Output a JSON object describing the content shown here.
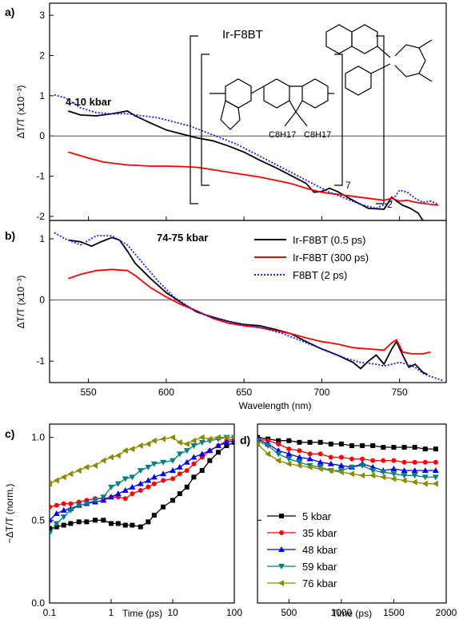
{
  "chart_data": [
    {
      "panel_label": "a)",
      "type": "line",
      "annotation": "4-10 kbar",
      "ylabel": "ΔT/T (x10⁻³)",
      "xlim": [
        525,
        780
      ],
      "ylim": [
        -2.1,
        3.3
      ],
      "yticks": [
        -2,
        -1,
        0,
        1,
        2,
        3
      ],
      "structure": {
        "title": "Ir-F8BT",
        "sub_left": "C8H17",
        "sub_right": "C8H17",
        "repeat_n": "7",
        "repeat_m": "2"
      },
      "series": [
        {
          "key": "ir05",
          "color": "#000000",
          "dash": "solid",
          "x": [
            537,
            545,
            555,
            565,
            575,
            580,
            590,
            600,
            610,
            620,
            630,
            640,
            650,
            660,
            670,
            680,
            690,
            695,
            700,
            705,
            710,
            720,
            730,
            740,
            745,
            748,
            752,
            757,
            762,
            765
          ],
          "y": [
            0.62,
            0.52,
            0.5,
            0.55,
            0.62,
            0.5,
            0.32,
            0.15,
            0.05,
            -0.05,
            -0.12,
            -0.25,
            -0.4,
            -0.6,
            -0.78,
            -0.98,
            -1.18,
            -1.4,
            -1.38,
            -1.3,
            -1.38,
            -1.6,
            -1.8,
            -1.82,
            -1.52,
            -1.62,
            -1.72,
            -1.8,
            -1.92,
            -2.1
          ]
        },
        {
          "key": "ir300",
          "color": "#ff0000",
          "dash": "solid",
          "x": [
            537,
            550,
            560,
            575,
            590,
            600,
            610,
            620,
            630,
            640,
            650,
            660,
            670,
            680,
            690,
            700,
            710,
            720,
            730,
            740,
            745,
            750,
            755,
            760,
            770,
            775
          ],
          "y": [
            -0.4,
            -0.55,
            -0.65,
            -0.72,
            -0.75,
            -0.75,
            -0.76,
            -0.78,
            -0.84,
            -0.9,
            -0.96,
            -1.02,
            -1.1,
            -1.18,
            -1.3,
            -1.4,
            -1.45,
            -1.5,
            -1.55,
            -1.6,
            -1.55,
            -1.62,
            -1.6,
            -1.65,
            -1.7,
            -1.72
          ]
        },
        {
          "key": "f8bt",
          "color": "#1a1aff",
          "dash": "dotted",
          "x": [
            528,
            535,
            545,
            555,
            565,
            575,
            585,
            595,
            605,
            615,
            625,
            635,
            645,
            655,
            665,
            675,
            685,
            695,
            705,
            715,
            725,
            735,
            745,
            750,
            755,
            760,
            765,
            770,
            775
          ],
          "y": [
            1.02,
            0.95,
            0.7,
            0.58,
            0.55,
            0.55,
            0.5,
            0.45,
            0.35,
            0.25,
            0.1,
            -0.05,
            -0.2,
            -0.4,
            -0.6,
            -0.8,
            -1.0,
            -1.2,
            -1.4,
            -1.55,
            -1.7,
            -1.8,
            -1.62,
            -1.35,
            -1.4,
            -1.55,
            -1.65,
            -1.62,
            -1.7
          ]
        }
      ]
    },
    {
      "panel_label": "b)",
      "type": "line",
      "annotation": "74-75 kbar",
      "ylabel": "ΔT/T (x10⁻³)",
      "xlabel": "Wavelength (nm)",
      "xlim": [
        525,
        780
      ],
      "ylim": [
        -1.35,
        1.3
      ],
      "xticks": [
        550,
        600,
        650,
        700,
        750
      ],
      "yticks": [
        -1,
        0,
        1
      ],
      "legend": [
        "Ir-F8BT (0.5 ps)",
        "Ir-F8BT (300 ps)",
        "F8BT (2 ps)"
      ],
      "series": [
        {
          "key": "ir05",
          "color": "#000000",
          "dash": "solid",
          "x": [
            537,
            545,
            552,
            558,
            565,
            570,
            575,
            580,
            590,
            600,
            610,
            620,
            630,
            640,
            650,
            660,
            670,
            680,
            690,
            700,
            710,
            720,
            725,
            730,
            735,
            740,
            745,
            748,
            752,
            756,
            760,
            765,
            768
          ],
          "y": [
            0.98,
            0.95,
            0.88,
            0.95,
            1.02,
            0.98,
            0.8,
            0.6,
            0.35,
            0.12,
            -0.05,
            -0.2,
            -0.28,
            -0.35,
            -0.4,
            -0.42,
            -0.48,
            -0.55,
            -0.68,
            -0.8,
            -0.9,
            -1.02,
            -1.12,
            -1.0,
            -0.9,
            -1.05,
            -0.8,
            -0.68,
            -0.9,
            -1.1,
            -1.05,
            -1.18,
            -1.22
          ]
        },
        {
          "key": "ir300",
          "color": "#ff0000",
          "dash": "solid",
          "x": [
            537,
            545,
            555,
            565,
            575,
            580,
            590,
            600,
            610,
            620,
            630,
            640,
            650,
            660,
            670,
            680,
            690,
            700,
            710,
            720,
            730,
            740,
            745,
            748,
            752,
            758,
            765,
            770
          ],
          "y": [
            0.35,
            0.42,
            0.48,
            0.5,
            0.48,
            0.4,
            0.2,
            0.05,
            -0.08,
            -0.18,
            -0.3,
            -0.38,
            -0.42,
            -0.45,
            -0.5,
            -0.55,
            -0.62,
            -0.68,
            -0.72,
            -0.78,
            -0.8,
            -0.82,
            -0.7,
            -0.65,
            -0.85,
            -0.88,
            -0.88,
            -0.85
          ]
        },
        {
          "key": "f8bt",
          "color": "#1a1aff",
          "dash": "dotted",
          "x": [
            528,
            535,
            545,
            555,
            565,
            575,
            585,
            595,
            605,
            615,
            625,
            635,
            645,
            655,
            665,
            675,
            685,
            695,
            705,
            715,
            725,
            735,
            740,
            745,
            750,
            755,
            760,
            765,
            770,
            778
          ],
          "y": [
            1.1,
            1.0,
            0.9,
            1.05,
            1.05,
            0.9,
            0.6,
            0.3,
            0.05,
            -0.12,
            -0.25,
            -0.32,
            -0.38,
            -0.42,
            -0.48,
            -0.55,
            -0.65,
            -0.75,
            -0.85,
            -0.95,
            -1.02,
            -1.05,
            -1.08,
            -1.05,
            -1.02,
            -1.05,
            -1.1,
            -1.2,
            -1.25,
            -1.32
          ]
        }
      ]
    },
    {
      "panel_label": "c)",
      "type": "line",
      "xscale": "log",
      "xlabel": "Time (ps)",
      "ylabel": "−ΔT/T (norm.)",
      "xlim": [
        0.1,
        100
      ],
      "ylim": [
        0.0,
        1.08
      ],
      "xticks": [
        0.1,
        1,
        10,
        100
      ],
      "xticklabels": [
        "0.1",
        "1",
        "10",
        "100"
      ],
      "yticks": [
        0.0,
        0.5,
        1.0
      ],
      "yticklabels": [
        "0.0",
        "0.5",
        "1.0"
      ],
      "series": [
        {
          "key": "k5",
          "color": "#000000",
          "marker": "square",
          "x": [
            0.1,
            0.13,
            0.17,
            0.22,
            0.3,
            0.4,
            0.55,
            0.75,
            1,
            1.3,
            1.7,
            2.2,
            3,
            4,
            5,
            7,
            10,
            13,
            17,
            22,
            30,
            40,
            55,
            75,
            100
          ],
          "y": [
            0.45,
            0.46,
            0.47,
            0.48,
            0.49,
            0.49,
            0.5,
            0.5,
            0.48,
            0.48,
            0.47,
            0.47,
            0.46,
            0.49,
            0.53,
            0.58,
            0.62,
            0.66,
            0.7,
            0.76,
            0.8,
            0.86,
            0.91,
            0.95,
            0.97
          ]
        },
        {
          "key": "k35",
          "color": "#ff0000",
          "marker": "circle",
          "x": [
            0.1,
            0.13,
            0.17,
            0.22,
            0.3,
            0.4,
            0.55,
            0.75,
            1,
            1.3,
            1.7,
            2.2,
            3,
            4,
            5,
            7,
            10,
            13,
            17,
            22,
            30,
            40,
            55,
            75,
            100
          ],
          "y": [
            0.58,
            0.59,
            0.6,
            0.6,
            0.61,
            0.62,
            0.63,
            0.63,
            0.64,
            0.64,
            0.63,
            0.66,
            0.68,
            0.7,
            0.72,
            0.74,
            0.75,
            0.78,
            0.8,
            0.84,
            0.88,
            0.92,
            0.95,
            0.98,
            0.99
          ]
        },
        {
          "key": "k48",
          "color": "#0000ff",
          "marker": "triangle-up",
          "x": [
            0.1,
            0.13,
            0.17,
            0.22,
            0.3,
            0.4,
            0.55,
            0.75,
            1,
            1.3,
            1.7,
            2.2,
            3,
            4,
            5,
            7,
            10,
            13,
            17,
            22,
            30,
            40,
            55,
            75,
            100
          ],
          "y": [
            0.5,
            0.54,
            0.56,
            0.57,
            0.59,
            0.6,
            0.61,
            0.62,
            0.64,
            0.66,
            0.68,
            0.7,
            0.72,
            0.74,
            0.76,
            0.78,
            0.8,
            0.82,
            0.85,
            0.88,
            0.9,
            0.92,
            0.95,
            0.97,
            0.98
          ]
        },
        {
          "key": "k59",
          "color": "#008080",
          "marker": "triangle-down",
          "x": [
            0.1,
            0.13,
            0.17,
            0.22,
            0.3,
            0.4,
            0.55,
            0.75,
            1,
            1.3,
            1.7,
            2.2,
            3,
            4,
            5,
            7,
            10,
            13,
            17,
            22,
            30,
            40,
            55,
            75,
            100
          ],
          "y": [
            0.42,
            0.48,
            0.52,
            0.56,
            0.59,
            0.6,
            0.62,
            0.64,
            0.7,
            0.72,
            0.75,
            0.76,
            0.8,
            0.82,
            0.84,
            0.85,
            0.86,
            0.9,
            0.92,
            0.95,
            0.97,
            0.98,
            0.99,
            1.0,
            1.0
          ]
        },
        {
          "key": "k76",
          "color": "#8a8a00",
          "marker": "triangle-left",
          "x": [
            0.1,
            0.13,
            0.17,
            0.22,
            0.3,
            0.4,
            0.55,
            0.75,
            1,
            1.3,
            1.7,
            2.2,
            3,
            4,
            5,
            7,
            10,
            13,
            17,
            22,
            30,
            40,
            55,
            75,
            100
          ],
          "y": [
            0.72,
            0.74,
            0.76,
            0.78,
            0.8,
            0.82,
            0.83,
            0.86,
            0.88,
            0.89,
            0.92,
            0.93,
            0.95,
            0.96,
            0.98,
            0.99,
            1.0,
            0.97,
            0.96,
            0.98,
            1.0,
            0.99,
            1.0,
            1.0,
            1.0
          ]
        }
      ]
    },
    {
      "panel_label": "d)",
      "type": "line",
      "xlabel": "Time (ps)",
      "xlim": [
        200,
        2000
      ],
      "ylim": [
        0.0,
        1.08
      ],
      "xticks": [
        500,
        1000,
        1500,
        2000
      ],
      "yticks": [
        0.0,
        0.5,
        1.0
      ],
      "legend": [
        "5 kbar",
        "35 kbar",
        "48 kbar",
        "59 kbar",
        "76 kbar"
      ],
      "series": [
        {
          "key": "k5",
          "color": "#000000",
          "marker": "square",
          "x": [
            200,
            300,
            400,
            500,
            600,
            700,
            800,
            900,
            1000,
            1100,
            1200,
            1300,
            1400,
            1500,
            1600,
            1700,
            1800,
            1900
          ],
          "y": [
            1.0,
            0.99,
            0.98,
            0.98,
            0.97,
            0.97,
            0.97,
            0.96,
            0.96,
            0.95,
            0.95,
            0.95,
            0.94,
            0.94,
            0.94,
            0.94,
            0.93,
            0.93
          ]
        },
        {
          "key": "k35",
          "color": "#ff0000",
          "marker": "circle",
          "x": [
            200,
            300,
            400,
            500,
            600,
            700,
            800,
            900,
            1000,
            1100,
            1200,
            1300,
            1400,
            1500,
            1600,
            1700,
            1800,
            1900
          ],
          "y": [
            0.99,
            0.98,
            0.96,
            0.93,
            0.92,
            0.9,
            0.9,
            0.88,
            0.88,
            0.87,
            0.87,
            0.86,
            0.86,
            0.86,
            0.85,
            0.85,
            0.85,
            0.85
          ]
        },
        {
          "key": "k48",
          "color": "#0000ff",
          "marker": "triangle-up",
          "x": [
            200,
            300,
            400,
            500,
            600,
            700,
            800,
            900,
            1000,
            1100,
            1200,
            1300,
            1400,
            1500,
            1600,
            1700,
            1800,
            1900
          ],
          "y": [
            0.99,
            0.96,
            0.92,
            0.9,
            0.88,
            0.87,
            0.85,
            0.84,
            0.83,
            0.82,
            0.84,
            0.82,
            0.8,
            0.81,
            0.8,
            0.8,
            0.8,
            0.8
          ]
        },
        {
          "key": "k59",
          "color": "#008080",
          "marker": "triangle-down",
          "x": [
            200,
            300,
            400,
            500,
            600,
            700,
            800,
            900,
            1000,
            1100,
            1200,
            1300,
            1400,
            1500,
            1600,
            1700,
            1800,
            1900
          ],
          "y": [
            0.98,
            0.95,
            0.9,
            0.87,
            0.85,
            0.83,
            0.82,
            0.8,
            0.8,
            0.82,
            0.83,
            0.8,
            0.79,
            0.78,
            0.77,
            0.77,
            0.76,
            0.76
          ]
        },
        {
          "key": "k76",
          "color": "#8a8a00",
          "marker": "triangle-left",
          "x": [
            200,
            300,
            400,
            500,
            600,
            700,
            800,
            900,
            1000,
            1100,
            1200,
            1300,
            1400,
            1500,
            1600,
            1700,
            1800,
            1900
          ],
          "y": [
            0.96,
            0.9,
            0.86,
            0.84,
            0.83,
            0.82,
            0.81,
            0.8,
            0.79,
            0.78,
            0.77,
            0.77,
            0.76,
            0.75,
            0.74,
            0.73,
            0.72,
            0.72
          ]
        }
      ]
    }
  ]
}
